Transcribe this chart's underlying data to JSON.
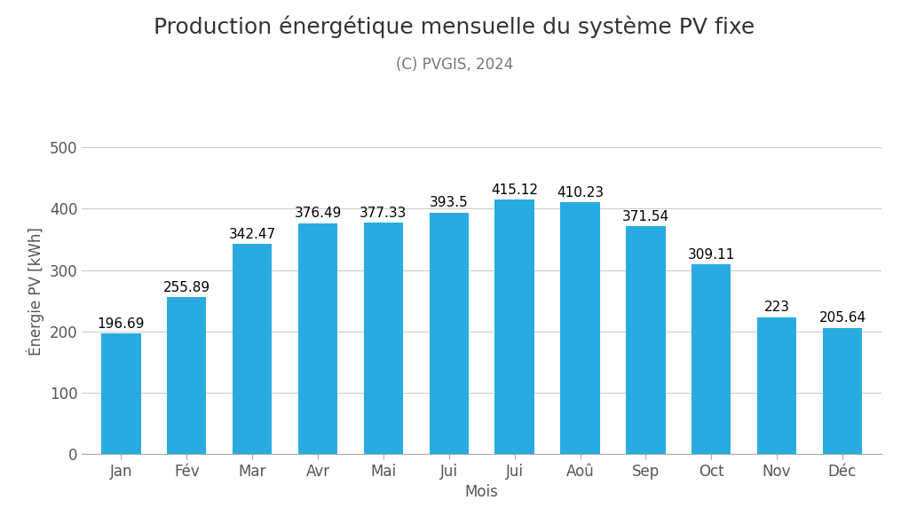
{
  "title": "Production énergétique mensuelle du système PV fixe",
  "subtitle": "(C) PVGIS, 2024",
  "xlabel": "Mois",
  "ylabel": "Énergie PV [kWh]",
  "categories": [
    "Jan",
    "Fév",
    "Mar",
    "Avr",
    "Mai",
    "Jui",
    "Jui",
    "Aoû",
    "Sep",
    "Oct",
    "Nov",
    "Déc"
  ],
  "values": [
    196.69,
    255.89,
    342.47,
    376.49,
    377.33,
    393.5,
    415.12,
    410.23,
    371.54,
    309.11,
    223,
    205.64
  ],
  "bar_color": "#29ABE2",
  "ylim": [
    0,
    530
  ],
  "yticks": [
    0,
    100,
    200,
    300,
    400,
    500
  ],
  "background_color": "#ffffff",
  "title_fontsize": 18,
  "subtitle_fontsize": 12,
  "label_fontsize": 12,
  "tick_fontsize": 12,
  "value_fontsize": 11,
  "tick_color": "#555555",
  "label_color": "#555555",
  "title_color": "#333333",
  "subtitle_color": "#777777",
  "grid_color": "#cccccc",
  "spine_color": "#aaaaaa"
}
